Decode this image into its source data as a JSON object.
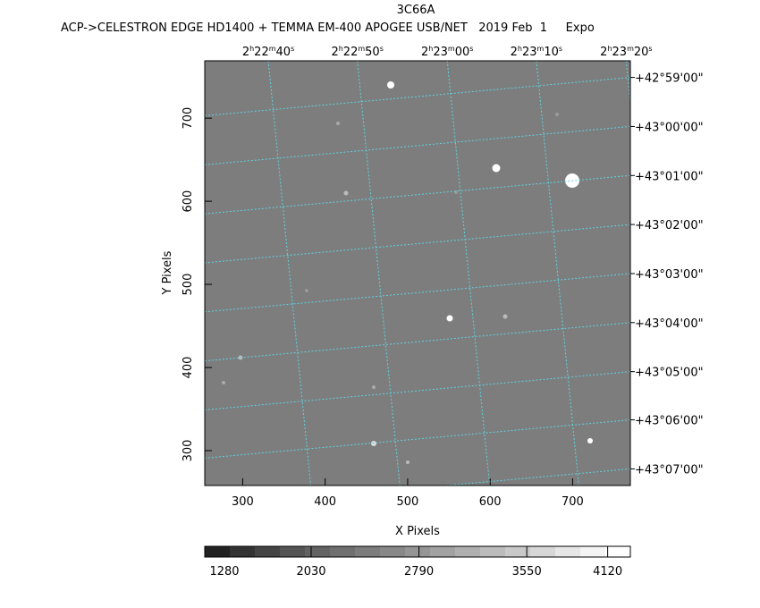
{
  "chart_data": {
    "type": "image",
    "title": "3C66A",
    "subtitle": "ACP->CELESTRON EDGE HD1400 + TEMMA EM-400 APOGEE USB/NET   2019 Feb  1     Expo",
    "x_label": "X Pixels",
    "y_label": "Y Pixels",
    "xlim": [
      254,
      770
    ],
    "ylim": [
      258,
      769
    ],
    "xticks": [
      300,
      400,
      500,
      600,
      700
    ],
    "yticks": [
      300,
      400,
      500,
      600,
      700
    ],
    "grid_color": "#5fd3e0",
    "ra_ticks": [
      {
        "value": 331,
        "label": [
          "2",
          "h",
          "22",
          "m",
          "40",
          "s"
        ]
      },
      {
        "value": 439,
        "label": [
          "2",
          "h",
          "22",
          "m",
          "50",
          "s"
        ]
      },
      {
        "value": 548,
        "label": [
          "2",
          "h",
          "23",
          "m",
          "00",
          "s"
        ]
      },
      {
        "value": 656,
        "label": [
          "2",
          "h",
          "23",
          "m",
          "10",
          "s"
        ]
      },
      {
        "value": 765,
        "label": [
          "2",
          "h",
          "23",
          "m",
          "20",
          "s"
        ]
      }
    ],
    "dec_ticks": [
      {
        "value": 749,
        "label": "+42°59'00\""
      },
      {
        "value": 690,
        "label": "+43°00'00\""
      },
      {
        "value": 631,
        "label": "+43°01'00\""
      },
      {
        "value": 572,
        "label": "+43°02'00\""
      },
      {
        "value": 513,
        "label": "+43°03'00\""
      },
      {
        "value": 454,
        "label": "+43°04'00\""
      },
      {
        "value": 395,
        "label": "+43°05'00\""
      },
      {
        "value": 337,
        "label": "+43°06'00\""
      },
      {
        "value": 278,
        "label": "+43°07'00\""
      }
    ],
    "colorbar": {
      "clim": [
        1280,
        4280
      ],
      "ticks": [
        1280,
        2030,
        2790,
        3550,
        4120
      ],
      "colors": [
        "#222",
        "#333",
        "#444",
        "#555",
        "#636363",
        "#707070",
        "#7c7c7c",
        "#888",
        "#959595",
        "#a2a2a2",
        "#afafaf",
        "#bcbcbc",
        "#c9c9c9",
        "#d7d7d7",
        "#e6e6e6",
        "#f4f4f4",
        "#fff"
      ]
    }
  }
}
